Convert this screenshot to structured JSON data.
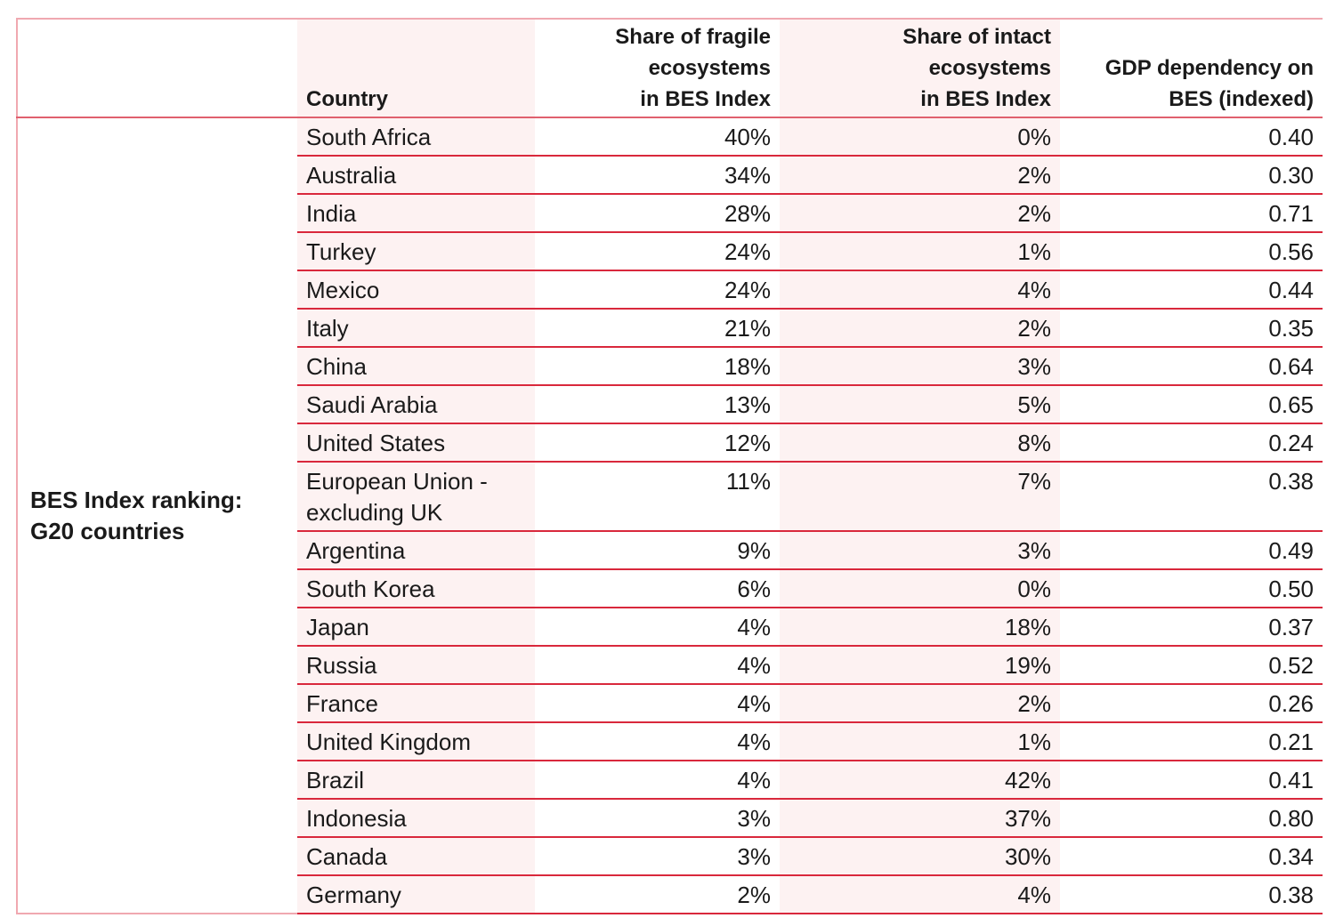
{
  "table": {
    "group_label": "BES Index ranking: G20 countries",
    "header": [
      [
        "Country"
      ],
      [
        "Share of fragile",
        "ecosystems",
        "in BES Index"
      ],
      [
        "Share of intact",
        "ecosystems",
        "in BES Index"
      ],
      [
        "GDP dependency on",
        "BES (indexed)"
      ]
    ],
    "rows": [
      [
        "South Africa",
        "40%",
        "0%",
        "0.40"
      ],
      [
        "Australia",
        "34%",
        "2%",
        "0.30"
      ],
      [
        "India",
        "28%",
        "2%",
        "0.71"
      ],
      [
        "Turkey",
        "24%",
        "1%",
        "0.56"
      ],
      [
        "Mexico",
        "24%",
        "4%",
        "0.44"
      ],
      [
        "Italy",
        "21%",
        "2%",
        "0.35"
      ],
      [
        "China",
        "18%",
        "3%",
        "0.64"
      ],
      [
        "Saudi Arabia",
        "13%",
        "5%",
        "0.65"
      ],
      [
        "United States",
        "12%",
        "8%",
        "0.24"
      ],
      [
        "European Union - excluding UK",
        "11%",
        "7%",
        "0.38"
      ],
      [
        "Argentina",
        "9%",
        "3%",
        "0.49"
      ],
      [
        "South Korea",
        "6%",
        "0%",
        "0.50"
      ],
      [
        "Japan",
        "4%",
        "18%",
        "0.37"
      ],
      [
        "Russia",
        "4%",
        "19%",
        "0.52"
      ],
      [
        "France",
        "4%",
        "2%",
        "0.26"
      ],
      [
        "United Kingdom",
        "4%",
        "1%",
        "0.21"
      ],
      [
        "Brazil",
        "4%",
        "42%",
        "0.41"
      ],
      [
        "Indonesia",
        "3%",
        "37%",
        "0.80"
      ],
      [
        "Canada",
        "3%",
        "30%",
        "0.34"
      ],
      [
        "Germany",
        "2%",
        "4%",
        "0.38"
      ]
    ]
  }
}
